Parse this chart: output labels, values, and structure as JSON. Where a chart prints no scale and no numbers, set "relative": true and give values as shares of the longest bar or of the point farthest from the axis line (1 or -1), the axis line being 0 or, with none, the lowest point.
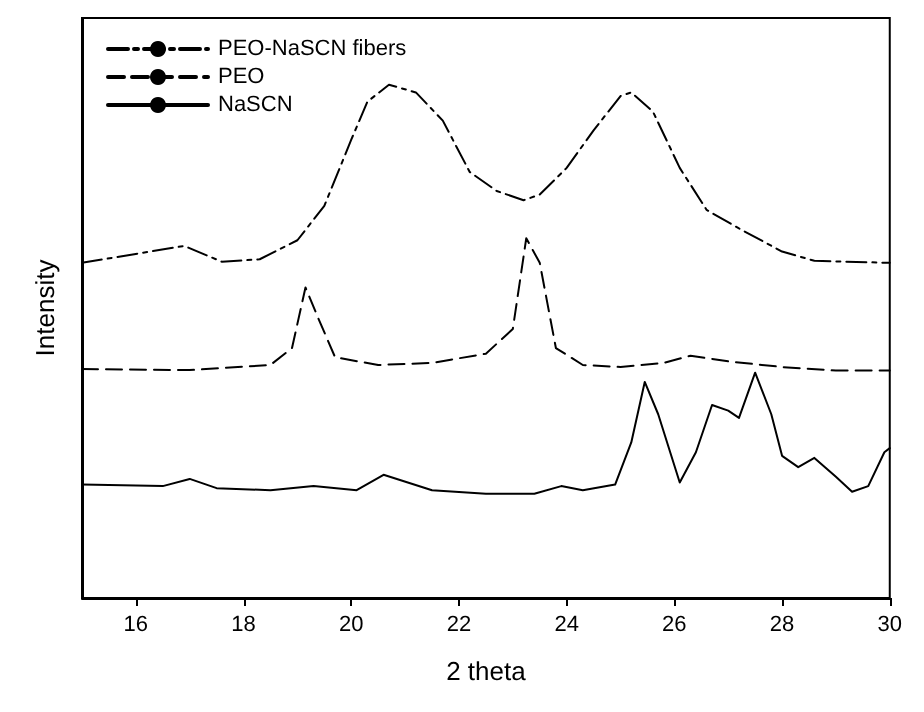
{
  "chart_data": {
    "type": "line",
    "xlabel": "2 theta",
    "ylabel": "Intensity",
    "relative": true,
    "xlim": [
      15,
      30
    ],
    "xticks": [
      16,
      18,
      20,
      22,
      24,
      26,
      28,
      30
    ],
    "grid": false,
    "legend": "top left",
    "marker": "none",
    "series": [
      {
        "name": "PEO-NaSCN fibers",
        "color": "#000000",
        "line_style": "dashdot",
        "x": [
          15,
          16.9,
          17.6,
          18.3,
          19,
          19.5,
          20,
          20.3,
          20.7,
          21.2,
          21.7,
          22.2,
          22.7,
          23.2,
          23.5,
          24,
          24.5,
          25,
          25.2,
          25.6,
          26.1,
          26.6,
          27.2,
          28,
          28.6,
          30
        ],
        "values": [
          0.653,
          0.686,
          0.655,
          0.66,
          0.697,
          0.764,
          0.893,
          0.967,
          1,
          0.985,
          0.93,
          0.83,
          0.793,
          0.775,
          0.786,
          0.838,
          0.911,
          0.978,
          0.985,
          0.948,
          0.838,
          0.756,
          0.72,
          0.675,
          0.657,
          0.653
        ]
      },
      {
        "name": "PEO",
        "color": "#000000",
        "line_style": "dashed",
        "x": [
          15,
          17,
          18.5,
          18.9,
          19.15,
          19.4,
          19.7,
          20.5,
          21.5,
          22.5,
          23,
          23.25,
          23.5,
          23.8,
          24.3,
          25,
          25.8,
          26.3,
          27,
          28,
          29,
          30
        ],
        "values": [
          0.446,
          0.444,
          0.454,
          0.487,
          0.605,
          0.542,
          0.469,
          0.454,
          0.458,
          0.476,
          0.524,
          0.701,
          0.653,
          0.487,
          0.454,
          0.45,
          0.458,
          0.472,
          0.461,
          0.45,
          0.443,
          0.443
        ]
      },
      {
        "name": "NaSCN",
        "color": "#000000",
        "line_style": "solid",
        "x": [
          15,
          16.5,
          17,
          17.5,
          18.5,
          19.3,
          20.1,
          20.6,
          21.5,
          22.5,
          23.4,
          23.9,
          24.3,
          24.9,
          25.2,
          25.45,
          25.7,
          26.1,
          26.4,
          26.7,
          27,
          27.2,
          27.5,
          27.8,
          28,
          28.3,
          28.6,
          29,
          29.3,
          29.6,
          29.9,
          30
        ],
        "values": [
          0.221,
          0.218,
          0.232,
          0.214,
          0.21,
          0.218,
          0.21,
          0.24,
          0.21,
          0.203,
          0.203,
          0.218,
          0.21,
          0.221,
          0.303,
          0.421,
          0.358,
          0.225,
          0.284,
          0.376,
          0.365,
          0.351,
          0.439,
          0.358,
          0.277,
          0.255,
          0.273,
          0.236,
          0.207,
          0.218,
          0.284,
          0.292
        ]
      }
    ]
  }
}
